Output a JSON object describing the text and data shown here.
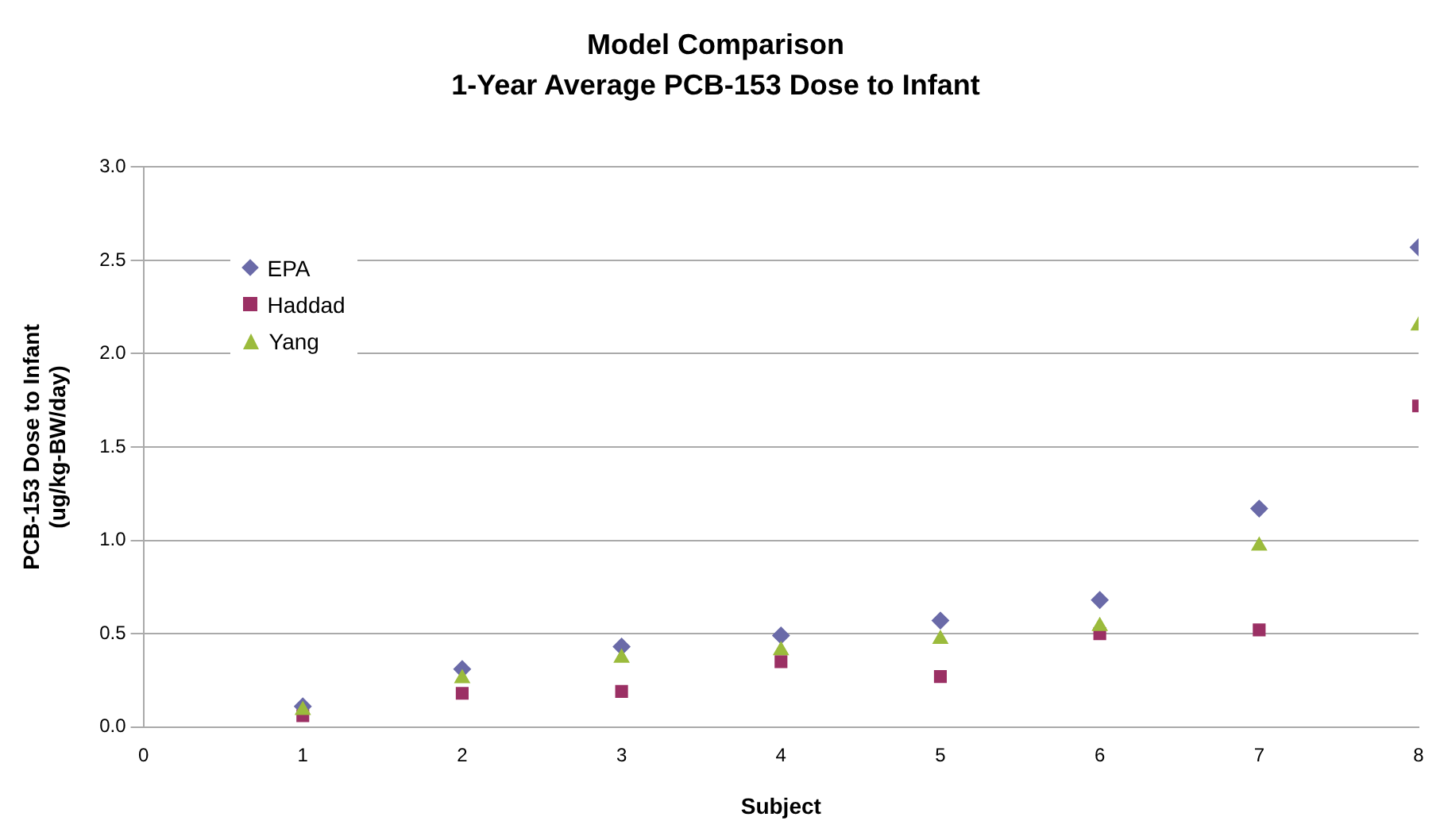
{
  "chart_data": {
    "type": "scatter",
    "title": "Model Comparison",
    "subtitle": "1-Year Average PCB-153 Dose to Infant",
    "xlabel": "Subject",
    "ylabel": "PCB-153 Dose to Infant\n(ug/kg-BW/day)",
    "x": [
      1,
      2,
      3,
      4,
      5,
      6,
      7,
      8
    ],
    "series": [
      {
        "name": "EPA",
        "color": "#6a6aa8",
        "marker": "diamond",
        "values": [
          0.11,
          0.31,
          0.43,
          0.49,
          0.57,
          0.68,
          1.17,
          2.57
        ]
      },
      {
        "name": "Haddad",
        "color": "#9b3064",
        "marker": "square",
        "values": [
          0.06,
          0.18,
          0.19,
          0.35,
          0.27,
          0.5,
          0.52,
          1.72
        ]
      },
      {
        "name": "Yang",
        "color": "#9bbb3c",
        "marker": "triangle",
        "values": [
          0.09,
          0.26,
          0.37,
          0.41,
          0.47,
          0.54,
          0.97,
          2.15
        ]
      }
    ],
    "xlim": [
      0,
      8
    ],
    "xticks": [
      0,
      1,
      2,
      3,
      4,
      5,
      6,
      7,
      8
    ],
    "ylim": [
      0,
      3
    ],
    "yticks": [
      {
        "value": 0,
        "label": "0.0"
      },
      {
        "value": 0.5,
        "label": "0.5"
      },
      {
        "value": 1,
        "label": "1.0"
      },
      {
        "value": 1.5,
        "label": "1.5"
      },
      {
        "value": 2,
        "label": "2.0"
      },
      {
        "value": 2.5,
        "label": "2.5"
      },
      {
        "value": 3,
        "label": "3.0"
      }
    ],
    "grid": "y",
    "legend": "top left"
  }
}
